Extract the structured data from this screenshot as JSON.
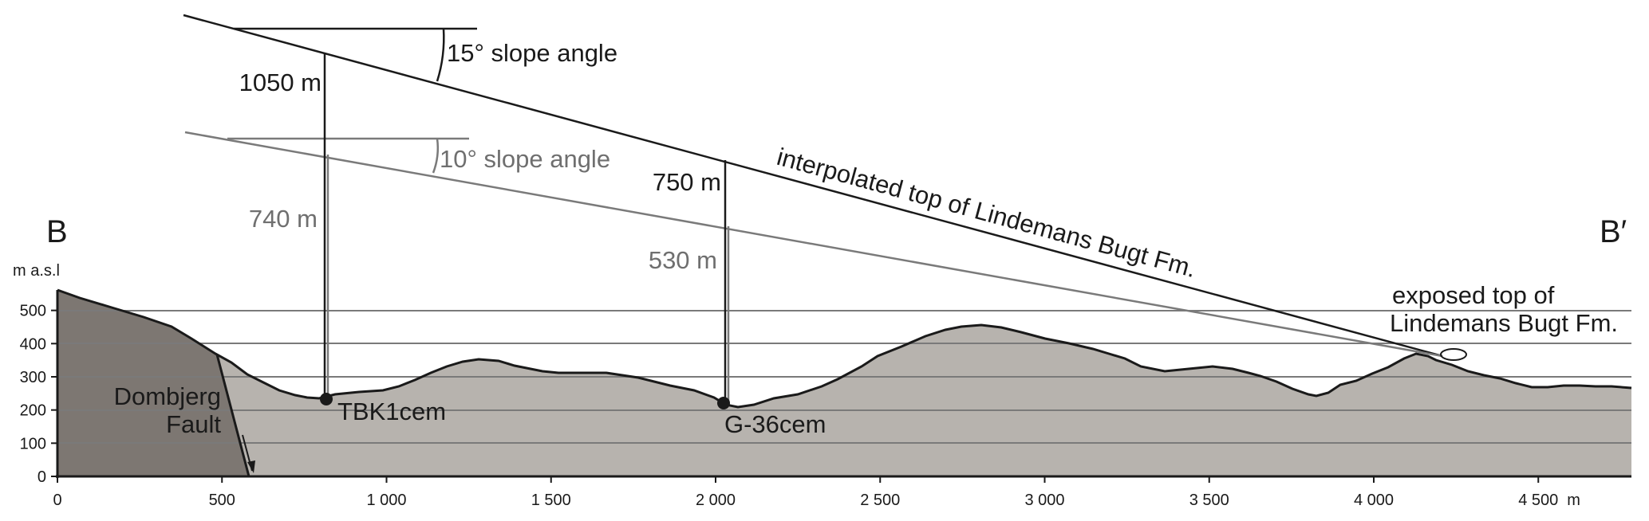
{
  "labels": {
    "section_start": "B",
    "section_end": "B′",
    "y_unit": "m a.s.l",
    "x_unit_suffix": "m",
    "fault_line1": "Dombjerg",
    "fault_line2": "Fault",
    "site1": "TBK1cem",
    "site2": "G-36cem",
    "slope15": "15° slope angle",
    "slope10": "10° slope angle",
    "d1050": "1050 m",
    "d740": "740 m",
    "d750": "750 m",
    "d530": "530 m",
    "interp": "interpolated top of Lindemans Bugt Fm.",
    "exposed_line1": "exposed top of",
    "exposed_line2": "Lindemans Bugt Fm."
  },
  "axes": {
    "y_ticks": [
      {
        "value": 0,
        "label": "0"
      },
      {
        "value": 100,
        "label": "100"
      },
      {
        "value": 200,
        "label": "200"
      },
      {
        "value": 300,
        "label": "300"
      },
      {
        "value": 400,
        "label": "400"
      },
      {
        "value": 500,
        "label": "500"
      }
    ],
    "x_ticks": [
      {
        "value": 0,
        "label": "0"
      },
      {
        "value": 500,
        "label": "500"
      },
      {
        "value": 1000,
        "label": "1 000"
      },
      {
        "value": 1500,
        "label": "1 500"
      },
      {
        "value": 2000,
        "label": "2 000"
      },
      {
        "value": 2500,
        "label": "2 500"
      },
      {
        "value": 3000,
        "label": "3 000"
      },
      {
        "value": 3500,
        "label": "3 500"
      },
      {
        "value": 4000,
        "label": "4 000"
      },
      {
        "value": 4500,
        "label": "4 500"
      }
    ]
  },
  "colors": {
    "terrain": "#b7b3ae",
    "fault_block": "#7d7772",
    "outline": "#1a1a1a",
    "grey_lines": "#7a7a7a",
    "text_grey": "#6f6f6f"
  }
}
